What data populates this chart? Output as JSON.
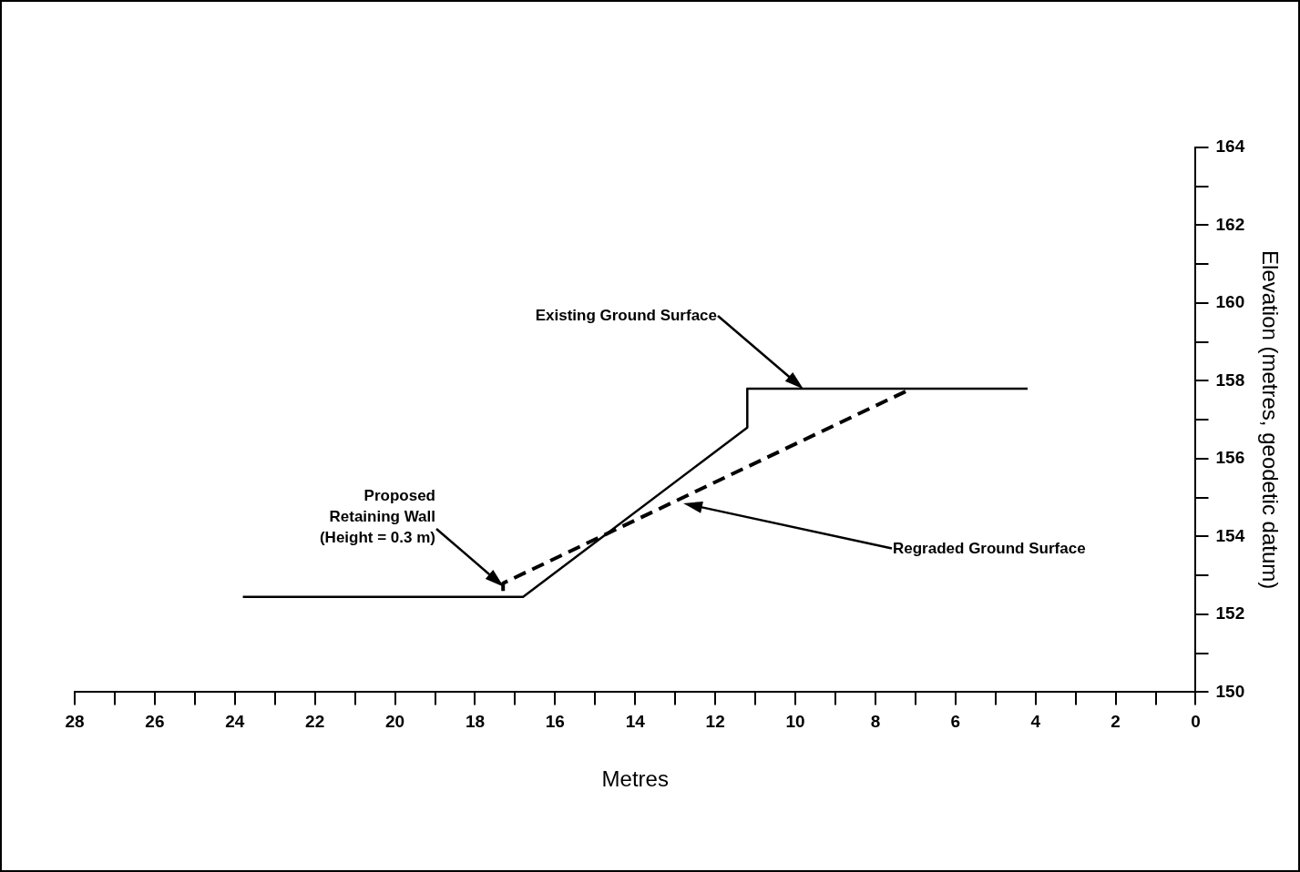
{
  "chart_data": {
    "type": "line",
    "xlabel": "Metres",
    "ylabel": "Elevation (metres, geodetic datum)",
    "xlim": [
      28,
      0
    ],
    "ylim": [
      150,
      164
    ],
    "xticks": [
      28,
      {
        "value": 27,
        "label": null
      },
      26,
      {
        "value": 25,
        "label": null
      },
      24,
      {
        "value": 23,
        "label": null
      },
      22,
      {
        "value": 21,
        "label": null
      },
      20,
      {
        "value": 19,
        "label": null
      },
      18,
      {
        "value": 17,
        "label": null
      },
      16,
      {
        "value": 15,
        "label": null
      },
      14,
      {
        "value": 13,
        "label": null
      },
      12,
      {
        "value": 11,
        "label": null
      },
      10,
      {
        "value": 9,
        "label": null
      },
      8,
      {
        "value": 7,
        "label": null
      },
      6,
      {
        "value": 5,
        "label": null
      },
      4,
      {
        "value": 3,
        "label": null
      },
      2,
      {
        "value": 1,
        "label": null
      },
      0
    ],
    "yticks": [
      150,
      {
        "value": 151,
        "label": null
      },
      152,
      {
        "value": 153,
        "label": null
      },
      154,
      {
        "value": 155,
        "label": null
      },
      156,
      {
        "value": 157,
        "label": null
      },
      158,
      {
        "value": 159,
        "label": null
      },
      160,
      {
        "value": 161,
        "label": null
      },
      162,
      {
        "value": 163,
        "label": null
      },
      164
    ],
    "grid": false,
    "legend": false,
    "marker": "none",
    "series": [
      {
        "color": "#000000",
        "line_style": "solid",
        "x": [
          23.8,
          16.8,
          11.2,
          11.2,
          4.2
        ],
        "values": [
          152.45,
          152.45,
          156.8,
          157.8,
          157.8
        ]
      },
      {
        "color": "#000000",
        "line_style": "dashed",
        "x": [
          17.3,
          17.3,
          7.1
        ],
        "values": [
          152.6,
          152.8,
          157.8
        ]
      }
    ],
    "annotations": [
      "Existing Ground Surface",
      "Proposed\nRetaining Wall\n(Height = 0.3 m)",
      "Regraded Ground Surface"
    ]
  }
}
